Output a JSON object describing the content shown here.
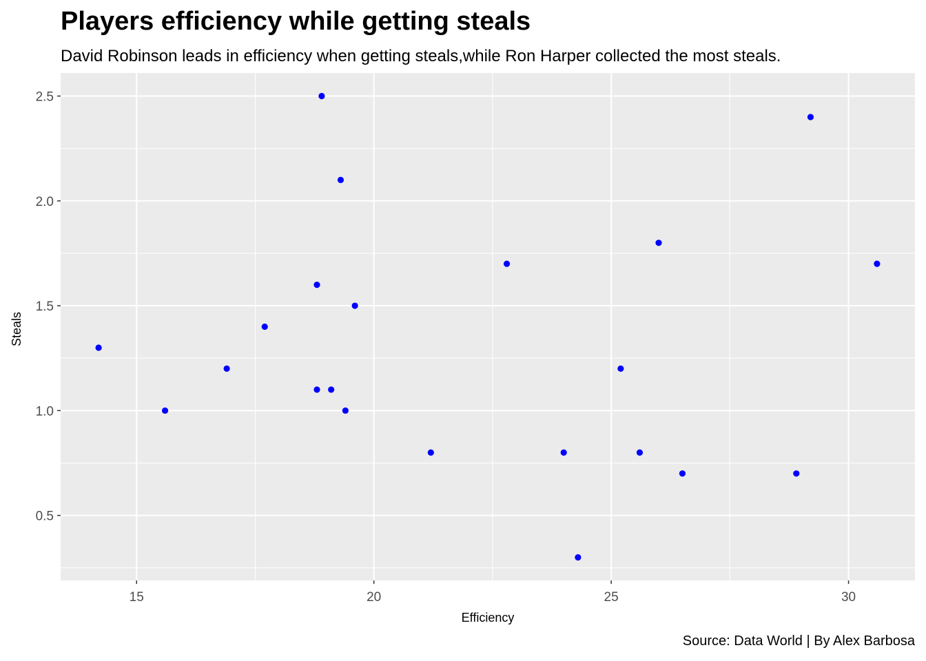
{
  "chart_data": {
    "type": "scatter",
    "title": "Players efficiency while getting steals",
    "subtitle": "David Robinson leads in efficiency when getting steals,while Ron Harper collected the most steals.",
    "caption": "Source: Data World | By Alex Barbosa",
    "xlabel": "Efficiency",
    "ylabel": "Steals",
    "xlim": [
      13.4,
      31.4
    ],
    "ylim": [
      0.19,
      2.61
    ],
    "xticks": [
      15,
      20,
      25,
      30
    ],
    "yticks": [
      0.5,
      1.0,
      1.5,
      2.0,
      2.5
    ],
    "xtick_labels": [
      "15",
      "20",
      "25",
      "30"
    ],
    "ytick_labels": [
      "0.5",
      "1.0",
      "1.5",
      "2.0",
      "2.5"
    ],
    "grid": true,
    "background": "#ebebeb",
    "grid_color": "#ffffff",
    "point_color": "#0000ff",
    "points": [
      {
        "x": 14.2,
        "y": 1.3
      },
      {
        "x": 15.6,
        "y": 1.0
      },
      {
        "x": 16.9,
        "y": 1.2
      },
      {
        "x": 17.7,
        "y": 1.4
      },
      {
        "x": 18.8,
        "y": 1.6
      },
      {
        "x": 18.8,
        "y": 1.1
      },
      {
        "x": 18.9,
        "y": 2.5
      },
      {
        "x": 19.1,
        "y": 1.1
      },
      {
        "x": 19.3,
        "y": 2.1
      },
      {
        "x": 19.4,
        "y": 1.0
      },
      {
        "x": 19.6,
        "y": 1.5
      },
      {
        "x": 21.2,
        "y": 0.8
      },
      {
        "x": 22.8,
        "y": 1.7
      },
      {
        "x": 24.0,
        "y": 0.8
      },
      {
        "x": 24.3,
        "y": 0.3
      },
      {
        "x": 25.2,
        "y": 1.2
      },
      {
        "x": 25.6,
        "y": 0.8
      },
      {
        "x": 26.0,
        "y": 1.8
      },
      {
        "x": 26.5,
        "y": 0.7
      },
      {
        "x": 28.9,
        "y": 0.7
      },
      {
        "x": 29.2,
        "y": 2.4
      },
      {
        "x": 30.6,
        "y": 1.7
      }
    ]
  }
}
